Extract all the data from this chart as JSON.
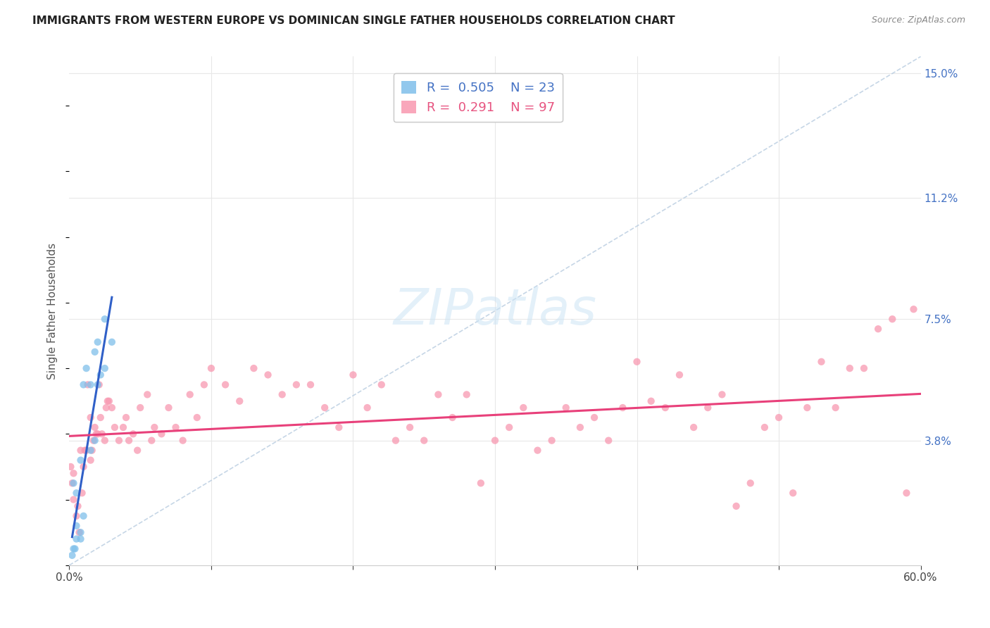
{
  "title": "IMMIGRANTS FROM WESTERN EUROPE VS DOMINICAN SINGLE FATHER HOUSEHOLDS CORRELATION CHART",
  "source": "Source: ZipAtlas.com",
  "ylabel": "Single Father Households",
  "xlim": [
    0.0,
    0.6
  ],
  "ylim": [
    0.0,
    0.155
  ],
  "xtick_positions": [
    0.0,
    0.1,
    0.2,
    0.3,
    0.4,
    0.5,
    0.6
  ],
  "xticklabels": [
    "0.0%",
    "",
    "",
    "",
    "",
    "",
    "60.0%"
  ],
  "yticks_right": [
    0.038,
    0.075,
    0.112,
    0.15
  ],
  "yticks_right_labels": [
    "3.8%",
    "7.5%",
    "11.2%",
    "15.0%"
  ],
  "blue_R": 0.505,
  "blue_N": 23,
  "pink_R": 0.291,
  "pink_N": 97,
  "blue_color": "#7fbfea",
  "pink_color": "#f898b0",
  "blue_trend_color": "#3060c8",
  "pink_trend_color": "#e8407a",
  "diag_color": "#b8cce0",
  "watermark": "ZIPatlas",
  "background_color": "#ffffff",
  "grid_color": "#e8e8e8",
  "blue_x": [
    0.005,
    0.008,
    0.003,
    0.005,
    0.008,
    0.01,
    0.012,
    0.015,
    0.018,
    0.02,
    0.022,
    0.025,
    0.003,
    0.005,
    0.008,
    0.01,
    0.015,
    0.02,
    0.025,
    0.03,
    0.002,
    0.004,
    0.018
  ],
  "blue_y": [
    0.008,
    0.01,
    0.025,
    0.022,
    0.032,
    0.055,
    0.06,
    0.055,
    0.065,
    0.068,
    0.058,
    0.075,
    0.005,
    0.012,
    0.008,
    0.015,
    0.035,
    0.055,
    0.06,
    0.068,
    0.003,
    0.005,
    0.038
  ],
  "pink_x": [
    0.001,
    0.002,
    0.003,
    0.005,
    0.007,
    0.008,
    0.01,
    0.012,
    0.013,
    0.015,
    0.015,
    0.016,
    0.017,
    0.018,
    0.019,
    0.02,
    0.021,
    0.022,
    0.023,
    0.025,
    0.026,
    0.027,
    0.028,
    0.03,
    0.032,
    0.035,
    0.038,
    0.04,
    0.042,
    0.045,
    0.048,
    0.05,
    0.055,
    0.058,
    0.06,
    0.065,
    0.07,
    0.075,
    0.08,
    0.085,
    0.09,
    0.095,
    0.1,
    0.11,
    0.12,
    0.13,
    0.14,
    0.15,
    0.16,
    0.17,
    0.18,
    0.19,
    0.2,
    0.21,
    0.22,
    0.23,
    0.24,
    0.25,
    0.26,
    0.27,
    0.28,
    0.29,
    0.3,
    0.31,
    0.32,
    0.33,
    0.34,
    0.35,
    0.36,
    0.37,
    0.38,
    0.39,
    0.4,
    0.41,
    0.42,
    0.43,
    0.44,
    0.45,
    0.46,
    0.47,
    0.48,
    0.49,
    0.5,
    0.51,
    0.52,
    0.53,
    0.54,
    0.55,
    0.56,
    0.57,
    0.58,
    0.59,
    0.595,
    0.003,
    0.006,
    0.009,
    0.011
  ],
  "pink_y": [
    0.03,
    0.025,
    0.02,
    0.015,
    0.01,
    0.035,
    0.03,
    0.035,
    0.055,
    0.045,
    0.032,
    0.035,
    0.038,
    0.042,
    0.04,
    0.04,
    0.055,
    0.045,
    0.04,
    0.038,
    0.048,
    0.05,
    0.05,
    0.048,
    0.042,
    0.038,
    0.042,
    0.045,
    0.038,
    0.04,
    0.035,
    0.048,
    0.052,
    0.038,
    0.042,
    0.04,
    0.048,
    0.042,
    0.038,
    0.052,
    0.045,
    0.055,
    0.06,
    0.055,
    0.05,
    0.06,
    0.058,
    0.052,
    0.055,
    0.055,
    0.048,
    0.042,
    0.058,
    0.048,
    0.055,
    0.038,
    0.042,
    0.038,
    0.052,
    0.045,
    0.052,
    0.025,
    0.038,
    0.042,
    0.048,
    0.035,
    0.038,
    0.048,
    0.042,
    0.045,
    0.038,
    0.048,
    0.062,
    0.05,
    0.048,
    0.058,
    0.042,
    0.048,
    0.052,
    0.018,
    0.025,
    0.042,
    0.045,
    0.022,
    0.048,
    0.062,
    0.048,
    0.06,
    0.06,
    0.072,
    0.075,
    0.022,
    0.078,
    0.028,
    0.018,
    0.022,
    0.035
  ]
}
